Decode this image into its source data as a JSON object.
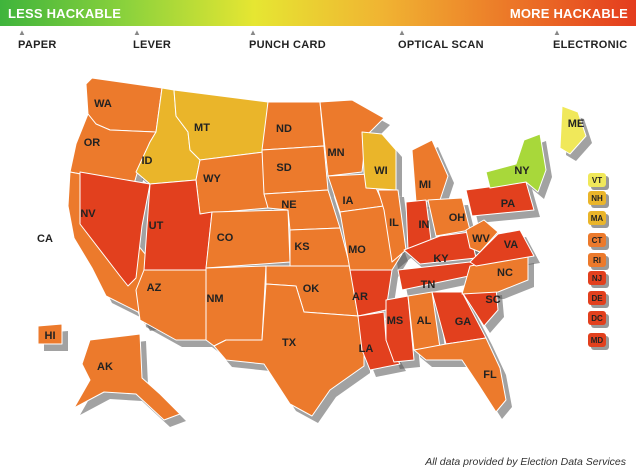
{
  "scale": {
    "low_label": "LESS HACKABLE",
    "high_label": "MORE HACKABLE",
    "gradient_colors": [
      "#3fb43c",
      "#8cd23c",
      "#e6e632",
      "#f0b432",
      "#ec7828",
      "#e43c1e"
    ]
  },
  "voting_methods": [
    "PAPER",
    "LEVER",
    "PUNCH CARD",
    "OPTICAL SCAN",
    "ELECTRONIC"
  ],
  "level_colors": {
    "1": "#a8d83a",
    "2": "#f0e85a",
    "3": "#eab52a",
    "4": "#ec7a2c",
    "5": "#e2401e"
  },
  "states": [
    {
      "code": "WA",
      "level": 4
    },
    {
      "code": "OR",
      "level": 4
    },
    {
      "code": "CA",
      "level": 4
    },
    {
      "code": "NV",
      "level": 5
    },
    {
      "code": "ID",
      "level": 3
    },
    {
      "code": "MT",
      "level": 3
    },
    {
      "code": "WY",
      "level": 4
    },
    {
      "code": "UT",
      "level": 5
    },
    {
      "code": "AZ",
      "level": 4
    },
    {
      "code": "CO",
      "level": 4
    },
    {
      "code": "NM",
      "level": 4
    },
    {
      "code": "ND",
      "level": 4
    },
    {
      "code": "SD",
      "level": 4
    },
    {
      "code": "NE",
      "level": 4
    },
    {
      "code": "KS",
      "level": 4
    },
    {
      "code": "OK",
      "level": 4
    },
    {
      "code": "TX",
      "level": 4
    },
    {
      "code": "MN",
      "level": 4
    },
    {
      "code": "IA",
      "level": 4
    },
    {
      "code": "MO",
      "level": 4
    },
    {
      "code": "AR",
      "level": 5
    },
    {
      "code": "LA",
      "level": 5
    },
    {
      "code": "WI",
      "level": 3
    },
    {
      "code": "IL",
      "level": 4
    },
    {
      "code": "MS",
      "level": 5
    },
    {
      "code": "MI",
      "level": 4
    },
    {
      "code": "IN",
      "level": 5
    },
    {
      "code": "KY",
      "level": 5
    },
    {
      "code": "TN",
      "level": 5
    },
    {
      "code": "AL",
      "level": 4
    },
    {
      "code": "OH",
      "level": 4
    },
    {
      "code": "GA",
      "level": 5
    },
    {
      "code": "FL",
      "level": 4
    },
    {
      "code": "SC",
      "level": 5
    },
    {
      "code": "NC",
      "level": 4
    },
    {
      "code": "VA",
      "level": 5
    },
    {
      "code": "WV",
      "level": 4
    },
    {
      "code": "PA",
      "level": 5
    },
    {
      "code": "NY",
      "level": 1
    },
    {
      "code": "ME",
      "level": 2
    },
    {
      "code": "AK",
      "level": 4
    },
    {
      "code": "HI",
      "level": 4
    }
  ],
  "small_states": [
    {
      "code": "VT",
      "level": 2
    },
    {
      "code": "NH",
      "level": 3
    },
    {
      "code": "MA",
      "level": 3
    },
    {
      "code": "CT",
      "level": 4
    },
    {
      "code": "RI",
      "level": 4
    },
    {
      "code": "NJ",
      "level": 5
    },
    {
      "code": "DE",
      "level": 5
    },
    {
      "code": "DC",
      "level": 5
    },
    {
      "code": "MD",
      "level": 5
    }
  ],
  "footer": "All data provided by Election Data Services"
}
